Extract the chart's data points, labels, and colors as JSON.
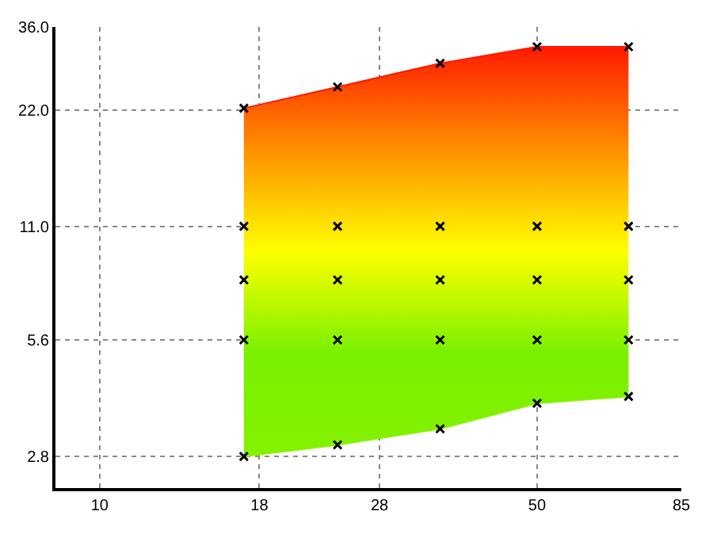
{
  "chart_data": {
    "type": "scatter",
    "log": "xy",
    "grid": true,
    "marker": "cross",
    "xlim": [
      8.5,
      85
    ],
    "xticks": [
      10,
      18,
      28,
      50,
      85
    ],
    "ylim": [
      2.32,
      36
    ],
    "yticks": [
      2.8,
      5.6,
      {
        "value": 11,
        "label": "11.0"
      },
      {
        "value": 22,
        "label": "22.0"
      },
      {
        "value": 36,
        "label": "36.0"
      }
    ],
    "series": [
      {
        "type": "line",
        "marker": "none",
        "color": "#84f200",
        "x": [
          17,
          24,
          35,
          50,
          70
        ],
        "values": [
          2.8,
          3,
          3.3,
          3.84,
          4
        ]
      },
      {
        "type": "area",
        "marker": "none",
        "colors": [
          "#84f200",
          "#78f000",
          "#ffff00",
          "#ff9000",
          "#ff1a00"
        ],
        "x": [
          17,
          24,
          35,
          50,
          70
        ],
        "values": [
          22.2,
          25.2,
          29,
          32,
          32
        ]
      },
      {
        "color": "#000000",
        "x": [
          17,
          17,
          17,
          17,
          17,
          24,
          24,
          24,
          24,
          24,
          35,
          35,
          35,
          35,
          35,
          50,
          50,
          50,
          50,
          50,
          70,
          70,
          70,
          70,
          70
        ],
        "values": [
          2.8,
          5.6,
          8,
          11,
          22.2,
          3,
          5.6,
          8,
          11,
          25.2,
          3.3,
          5.6,
          8,
          11,
          29,
          3.84,
          5.6,
          8,
          11,
          32,
          4,
          5.6,
          8,
          11,
          32
        ]
      }
    ]
  }
}
